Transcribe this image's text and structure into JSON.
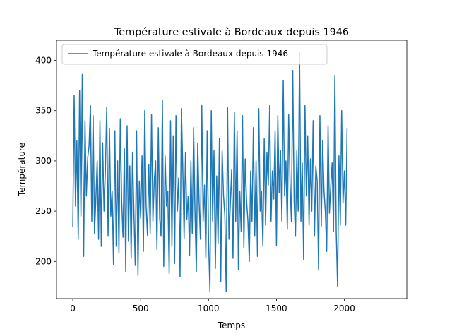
{
  "chart_data": {
    "type": "line",
    "title": "Température estivale à Bordeaux depuis 1946",
    "xlabel": "Temps",
    "ylabel": "Température",
    "xlim": [
      -120,
      2460
    ],
    "ylim": [
      163,
      420
    ],
    "xticks": [
      0,
      500,
      1000,
      1500,
      2000
    ],
    "yticks": [
      200,
      250,
      300,
      350,
      400
    ],
    "grid": false,
    "legend_position": "top-left",
    "series": [
      {
        "name": "Température estivale à Bordeaux depuis 1946",
        "color": "#1f77b4",
        "x_start": 0,
        "x_step": 10,
        "values": [
          234,
          365,
          255,
          320,
          222,
          370,
          245,
          386,
          205,
          340,
          265,
          303,
          315,
          355,
          240,
          345,
          228,
          262,
          300,
          222,
          340,
          215,
          318,
          250,
          290,
          353,
          225,
          332,
          245,
          270,
          197,
          330,
          215,
          300,
          208,
          342,
          260,
          224,
          312,
          190,
          335,
          220,
          295,
          203,
          308,
          250,
          196,
          330,
          186,
          280,
          243,
          305,
          210,
          350,
          255,
          226,
          296,
          228,
          346,
          240,
          280,
          300,
          212,
          333,
          243,
          225,
          360,
          195,
          305,
          255,
          270,
          188,
          340,
          215,
          325,
          198,
          345,
          250,
          283,
          185,
          352,
          295,
          223,
          308,
          242,
          265,
          206,
          300,
          228,
          333,
          250,
          190,
          317,
          260,
          222,
          355,
          240,
          276,
          203,
          330,
          220,
          170,
          350,
          240,
          310,
          193,
          285,
          218,
          322,
          180,
          310,
          266,
          245,
          170,
          353,
          222,
          256,
          291,
          203,
          348,
          240,
          330,
          192,
          270,
          230,
          345,
          213,
          302,
          260,
          240,
          200,
          290,
          240,
          333,
          225,
          300,
          205,
          352,
          250,
          270,
          215,
          322,
          236,
          308,
          276,
          355,
          240,
          290,
          262,
          330,
          216,
          345,
          268,
          310,
          240,
          380,
          265,
          300,
          232,
          346,
          278,
          240,
          390,
          260,
          225,
          310,
          250,
          408,
          240,
          298,
          202,
          355,
          265,
          325,
          236,
          302,
          250,
          340,
          225,
          295,
          280,
          192,
          345,
          235,
          320,
          270,
          250,
          210,
          335,
          248,
          275,
          298,
          230,
          385,
          230,
          175,
          305,
          236,
          350,
          258,
          290,
          236,
          332
        ]
      }
    ]
  }
}
